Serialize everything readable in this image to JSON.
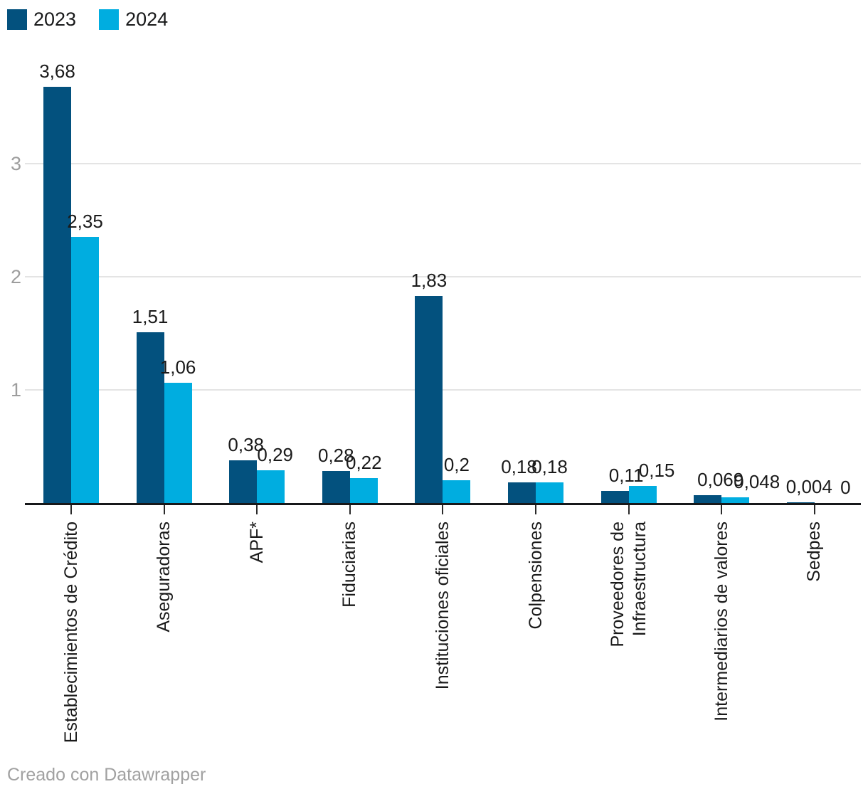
{
  "legend": {
    "items": [
      {
        "label": "2023"
      },
      {
        "label": "2024"
      }
    ]
  },
  "footer": {
    "text": "Creado con Datawrapper"
  },
  "chart_data": {
    "type": "bar",
    "title": "",
    "xlabel": "",
    "ylabel": "",
    "categories": [
      "Establecimientos de Crédito",
      "Aseguradoras",
      "APF*",
      "Fiduciarias",
      "Instituciones oficiales",
      "Colpensiones",
      "Proveedores de Infraestructura",
      "Intermediarios de valores",
      "Sedpes"
    ],
    "category_lines": [
      [
        "Establecimientos de Crédito"
      ],
      [
        "Aseguradoras"
      ],
      [
        "APF*"
      ],
      [
        "Fiduciarias"
      ],
      [
        "Instituciones oficiales"
      ],
      [
        "Colpensiones"
      ],
      [
        "Proveedores de",
        "Infraestructura"
      ],
      [
        "Intermediarios de valores"
      ],
      [
        "Sedpes"
      ]
    ],
    "series": [
      {
        "name": "2023",
        "color": "#03517e",
        "values": [
          3.68,
          1.51,
          0.38,
          0.28,
          1.83,
          0.18,
          0.11,
          0.069,
          0.004
        ],
        "value_labels": [
          "3,68",
          "1,51",
          "0,38",
          "0,28",
          "1,83",
          "0,18",
          "0,11",
          "0,069",
          "0,004"
        ]
      },
      {
        "name": "2024",
        "color": "#00ade0",
        "values": [
          2.35,
          1.06,
          0.29,
          0.22,
          0.2,
          0.18,
          0.15,
          0.048,
          0
        ],
        "value_labels": [
          "2,35",
          "1,06",
          "0,29",
          "0,22",
          "0,2",
          "0,18",
          "0,15",
          "0,048",
          "0"
        ]
      }
    ],
    "y_ticks": [
      1,
      2,
      3
    ],
    "ylim": [
      0,
      3.9
    ],
    "grid": true,
    "legend_position": "top-left",
    "colors": {
      "grid": "#e4e4e4",
      "axis": "#17181a",
      "tick_label": "#9d9d9d",
      "value_label": "#1a1a1a",
      "category_label": "#1a1a1a"
    }
  }
}
